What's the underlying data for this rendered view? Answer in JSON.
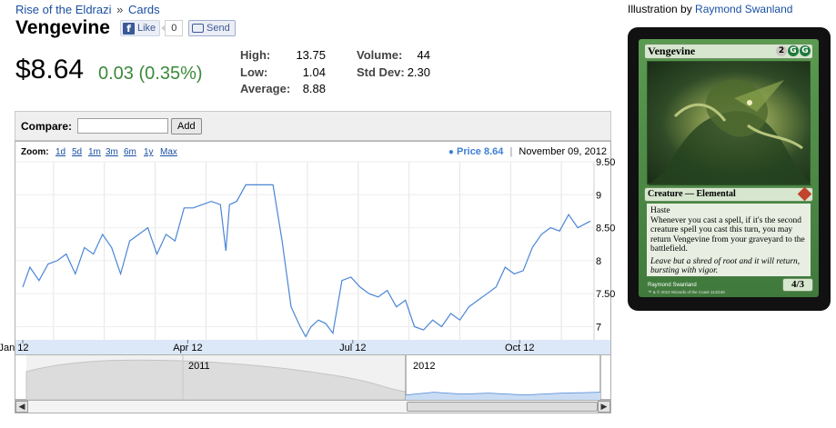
{
  "breadcrumb": {
    "set": "Rise of the Eldrazi",
    "sep": "»",
    "section": "Cards"
  },
  "card_name": "Vengevine",
  "facebook": {
    "like_label": "Like",
    "like_count": "0",
    "send_label": "Send",
    "logo": "f"
  },
  "price": {
    "current": "$8.64",
    "change": "0.03 (0.35%)",
    "change_color": "#3a8a3a"
  },
  "stats": {
    "high_label": "High:",
    "high": "13.75",
    "low_label": "Low:",
    "low": "1.04",
    "average_label": "Average:",
    "average": "8.88",
    "volume_label": "Volume:",
    "volume": "44",
    "stddev_label": "Std Dev:",
    "stddev": "2.30"
  },
  "compare": {
    "label": "Compare:",
    "input_value": "",
    "add_label": "Add"
  },
  "zoom": {
    "label": "Zoom:",
    "options": [
      "1d",
      "5d",
      "1m",
      "3m",
      "6m",
      "1y",
      "Max"
    ]
  },
  "legend": {
    "dot": "●",
    "price_label": "Price 8.64",
    "date": "November 09, 2012"
  },
  "navigator": {
    "years": [
      "2011",
      "2012"
    ]
  },
  "scrollbar": {
    "left_arrow": "◀",
    "right_arrow": "▶"
  },
  "illustration": {
    "prefix": "Illustration by",
    "artist": "Raymond Swanland"
  },
  "card": {
    "title": "Vengevine",
    "mana": [
      "2",
      "G",
      "G"
    ],
    "type_line": "Creature — Elemental",
    "rules": [
      "Haste",
      "Whenever you cast a spell, if it's the second creature spell you cast this turn, you may return Vengevine from your graveyard to the battlefield."
    ],
    "flavor": "Leave but a shred of root and it will return, bursting with vigor.",
    "pt": "4/3",
    "artist_line": "Raymond Swanland",
    "copyright_line": "™ & © 2010 Wizards of the Coast  114/248"
  },
  "chart_data": {
    "type": "line",
    "series": [
      {
        "name": "Price",
        "x": [
          "2012-01-01",
          "2012-01-05",
          "2012-01-10",
          "2012-01-15",
          "2012-01-20",
          "2012-01-25",
          "2012-01-30",
          "2012-02-04",
          "2012-02-09",
          "2012-02-14",
          "2012-02-19",
          "2012-02-24",
          "2012-02-29",
          "2012-03-05",
          "2012-03-10",
          "2012-03-15",
          "2012-03-20",
          "2012-03-25",
          "2012-03-30",
          "2012-04-04",
          "2012-04-09",
          "2012-04-14",
          "2012-04-19",
          "2012-04-22",
          "2012-04-24",
          "2012-04-28",
          "2012-05-03",
          "2012-05-08",
          "2012-05-13",
          "2012-05-18",
          "2012-05-23",
          "2012-05-28",
          "2012-06-02",
          "2012-06-05",
          "2012-06-08",
          "2012-06-12",
          "2012-06-16",
          "2012-06-20",
          "2012-06-25",
          "2012-06-30",
          "2012-07-05",
          "2012-07-10",
          "2012-07-15",
          "2012-07-20",
          "2012-07-25",
          "2012-07-30",
          "2012-08-04",
          "2012-08-09",
          "2012-08-14",
          "2012-08-19",
          "2012-08-24",
          "2012-08-29",
          "2012-09-03",
          "2012-09-08",
          "2012-09-13",
          "2012-09-18",
          "2012-09-23",
          "2012-09-28",
          "2012-10-03",
          "2012-10-08",
          "2012-10-13",
          "2012-10-18",
          "2012-10-23",
          "2012-10-28",
          "2012-11-02",
          "2012-11-09"
        ],
        "y": [
          7.6,
          7.9,
          7.7,
          7.95,
          8.0,
          8.1,
          7.8,
          8.2,
          8.1,
          8.4,
          8.2,
          7.8,
          8.3,
          8.4,
          8.5,
          8.1,
          8.4,
          8.3,
          8.8,
          8.8,
          8.85,
          8.9,
          8.85,
          8.15,
          8.85,
          8.9,
          9.15,
          9.15,
          9.15,
          9.15,
          8.3,
          7.3,
          7.0,
          6.85,
          7.0,
          7.1,
          7.05,
          6.9,
          7.7,
          7.75,
          7.6,
          7.5,
          7.45,
          7.55,
          7.3,
          7.4,
          7.0,
          6.95,
          7.1,
          7.0,
          7.2,
          7.1,
          7.3,
          7.4,
          7.5,
          7.6,
          7.9,
          7.8,
          7.85,
          8.2,
          8.4,
          8.5,
          8.45,
          8.7,
          8.5,
          8.6
        ]
      }
    ],
    "x_ticks": [
      "Jan 12",
      "Apr 12",
      "Jul 12",
      "Oct 12"
    ],
    "ylim": [
      6.8,
      9.5
    ],
    "y_ticks": [
      "7",
      "7.50",
      "8",
      "8.50",
      "9",
      "9.50"
    ],
    "grid": true,
    "line_color": "#4a86d6",
    "xlabel": "",
    "ylabel": ""
  }
}
